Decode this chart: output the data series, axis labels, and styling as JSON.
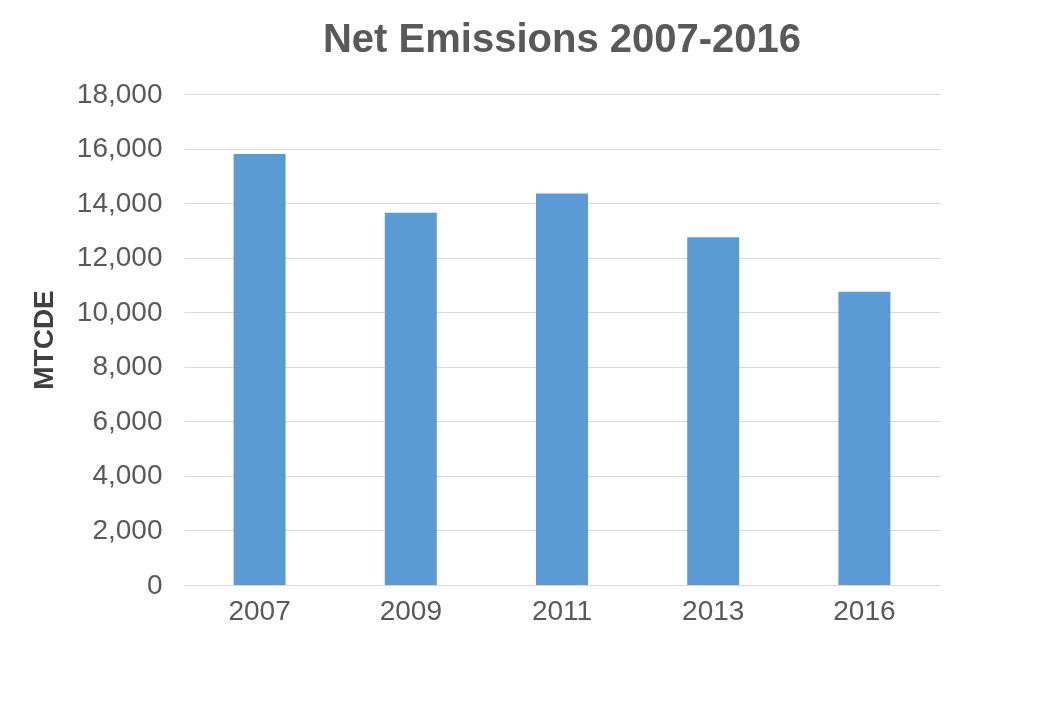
{
  "chart_data": {
    "type": "bar",
    "title": "Net Emissions 2007-2016",
    "ylabel": "MTCDE",
    "categories": [
      "2007",
      "2009",
      "2011",
      "2013",
      "2016"
    ],
    "values": [
      15800,
      13650,
      14350,
      12750,
      10750
    ],
    "color": "#5b9bd5",
    "ylim": [
      0,
      18000
    ],
    "yticks": [
      0,
      {
        "value": 2000,
        "label": "2,000"
      },
      {
        "value": 4000,
        "label": "4,000"
      },
      {
        "value": 6000,
        "label": "6,000"
      },
      {
        "value": 8000,
        "label": "8,000"
      },
      {
        "value": 10000,
        "label": "10,000"
      },
      {
        "value": 12000,
        "label": "12,000"
      },
      {
        "value": 14000,
        "label": "14,000"
      },
      {
        "value": 16000,
        "label": "16,000"
      },
      {
        "value": 18000,
        "label": "18,000"
      }
    ],
    "grid": "y"
  }
}
